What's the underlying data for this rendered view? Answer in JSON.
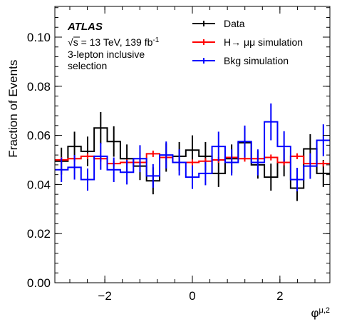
{
  "chart_data": {
    "type": "line",
    "ylabel": "Fraction of Events",
    "xlabel": "φ",
    "xlabel_sup": "μ,2",
    "xlim": [
      -3.1416,
      3.1416
    ],
    "ylim": [
      0,
      0.1125
    ],
    "x_ticks": [
      -2,
      0,
      2
    ],
    "x_tick_labels": [
      "−2",
      "0",
      "2"
    ],
    "y_ticks": [
      0,
      0.02,
      0.04,
      0.06,
      0.08,
      0.1
    ],
    "y_tick_labels": [
      "0.00",
      "0.02",
      "0.04",
      "0.06",
      "0.08",
      "0.10"
    ],
    "bins": 20,
    "annotation": {
      "experiment": "ATLAS",
      "sqrt": "√",
      "energy_s": "s",
      "energy_rest": " = 13 TeV, 139 fb",
      "energy_sup": "-1",
      "line3": "3-lepton inclusive",
      "line4": "selection"
    },
    "legend_position": "top-right",
    "series": [
      {
        "name": "Data",
        "color": "#000000",
        "values": [
          0.0495,
          0.0555,
          0.0535,
          0.063,
          0.0575,
          0.0505,
          0.0475,
          0.0415,
          0.051,
          0.0515,
          0.054,
          0.0515,
          0.0445,
          0.0505,
          0.057,
          0.048,
          0.043,
          0.049,
          0.0385,
          0.0545,
          0.0445
        ],
        "errors": [
          0.0055,
          0.006,
          0.006,
          0.0065,
          0.0062,
          0.0058,
          0.0057,
          0.0055,
          0.0058,
          0.0058,
          0.006,
          0.0058,
          0.0055,
          0.0058,
          0.006,
          0.0056,
          0.0055,
          0.0057,
          0.0052,
          0.006,
          0.0055
        ]
      },
      {
        "name": "H→ μμ simulation",
        "color": "#ff0000",
        "values": [
          0.05,
          0.0505,
          0.0515,
          0.0505,
          0.0485,
          0.049,
          0.049,
          0.0525,
          0.051,
          0.049,
          0.049,
          0.0495,
          0.05,
          0.051,
          0.0505,
          0.0505,
          0.051,
          0.049,
          0.0515,
          0.0485,
          0.0485
        ],
        "errors": [
          0.0012,
          0.0012,
          0.0012,
          0.0012,
          0.0012,
          0.0012,
          0.0012,
          0.0013,
          0.0012,
          0.0012,
          0.0012,
          0.0012,
          0.0012,
          0.0012,
          0.0012,
          0.0012,
          0.0012,
          0.0012,
          0.0012,
          0.0012,
          0.0012
        ]
      },
      {
        "name": "Bkg simulation",
        "color": "#0000ff",
        "values": [
          0.046,
          0.047,
          0.042,
          0.0515,
          0.046,
          0.045,
          0.0505,
          0.0435,
          0.052,
          0.049,
          0.043,
          0.0445,
          0.0555,
          0.049,
          0.0575,
          0.049,
          0.0655,
          0.0555,
          0.042,
          0.0475,
          0.058
        ],
        "errors": [
          0.005,
          0.005,
          0.0045,
          0.0055,
          0.005,
          0.005,
          0.0055,
          0.0048,
          0.0055,
          0.0053,
          0.0048,
          0.0048,
          0.006,
          0.0053,
          0.0065,
          0.0053,
          0.0075,
          0.0062,
          0.0048,
          0.0052,
          0.0065
        ]
      }
    ]
  }
}
